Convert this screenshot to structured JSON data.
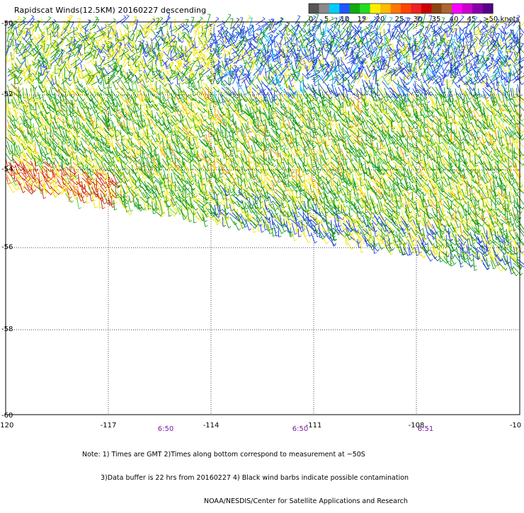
{
  "title": "Rapidscat Winds(12.5KM) 20160227 descending",
  "legend": {
    "ticks": [
      "0",
      "5",
      "10",
      "15",
      "20",
      "25",
      "30",
      "35",
      "40",
      "45",
      ">50 knots"
    ],
    "colors": [
      "#555555",
      "#8a8a8a",
      "#00ccff",
      "#2255ff",
      "#11aa11",
      "#22dd22",
      "#ffee00",
      "#ffbb00",
      "#ff7700",
      "#ff4400",
      "#ee2222",
      "#cc0000",
      "#8b4513",
      "#aa6633",
      "#ff00ff",
      "#cc00cc",
      "#8800aa",
      "#550088"
    ]
  },
  "axes": {
    "lon_labels": [
      "-120",
      "-117",
      "-114",
      "-111",
      "-108",
      "-10"
    ],
    "lat_labels": [
      "-50",
      "-52",
      "-54",
      "-56",
      "-58",
      "-60"
    ]
  },
  "time_labels": [
    "6:50",
    "6:50",
    "6:51"
  ],
  "notes": [
    "Note: 1) Times are GMT 2)Times along bottom correspond to measurement at ~50S",
    "3)Data buffer is 22 hrs from 20160227 4) Black wind barbs indicate possible contamination",
    "NOAA/NESDIS/Center for Satellite Applications and Research"
  ]
}
